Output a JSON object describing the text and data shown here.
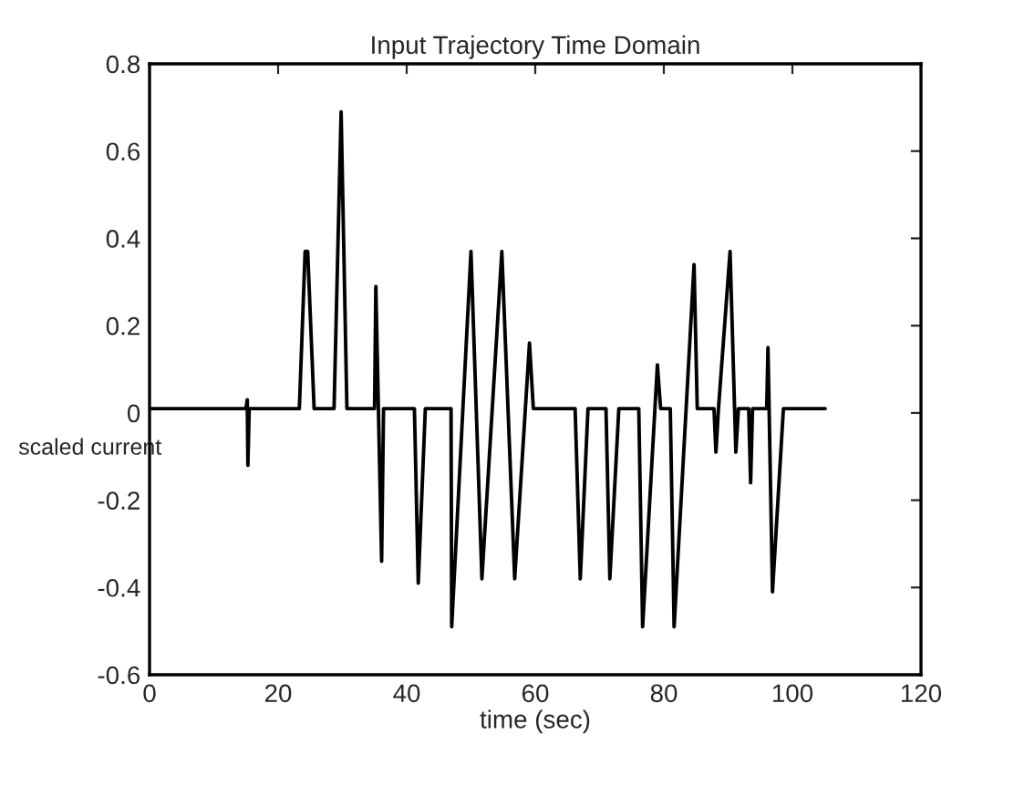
{
  "chart_data": {
    "type": "line",
    "title": "Input Trajectory Time Domain",
    "xlabel": "time (sec)",
    "ylabel": "scaled current",
    "xlim": [
      0,
      120
    ],
    "xticks": [
      0,
      20,
      40,
      60,
      80,
      100,
      120
    ],
    "ylim": [
      -0.6,
      0.8
    ],
    "yticks": [
      -0.6,
      -0.4,
      -0.2,
      0,
      0.2,
      0.4,
      0.6,
      0.8
    ],
    "grid": false,
    "series": [
      {
        "color": "#000000",
        "x": [
          0,
          15.0,
          15.2,
          15.3,
          15.5,
          23.3,
          24.2,
          24.6,
          25.6,
          28.7,
          29.8,
          30.7,
          35.0,
          35.2,
          35.6,
          36.1,
          36.4,
          41.2,
          41.8,
          42.9,
          46.9,
          47.0,
          50.0,
          51.7,
          54.8,
          56.8,
          59.1,
          59.7,
          66.2,
          67.0,
          68.2,
          71.0,
          71.6,
          73.0,
          76.1,
          76.7,
          79.0,
          79.5,
          81.0,
          81.6,
          84.7,
          85.2,
          87.8,
          88.1,
          88.5,
          90.3,
          91.2,
          91.6,
          93.2,
          93.5,
          93.8,
          96.0,
          96.2,
          96.9,
          98.6,
          105.1
        ],
        "values": [
          0.01,
          0.01,
          0.03,
          -0.12,
          0.01,
          0.01,
          0.37,
          0.37,
          0.01,
          0.01,
          0.69,
          0.01,
          0.01,
          0.29,
          0.01,
          -0.34,
          0.01,
          0.01,
          -0.39,
          0.01,
          0.01,
          -0.49,
          0.37,
          -0.38,
          0.37,
          -0.38,
          0.16,
          0.01,
          0.01,
          -0.38,
          0.01,
          0.01,
          -0.38,
          0.01,
          0.01,
          -0.49,
          0.11,
          0.01,
          0.01,
          -0.49,
          0.34,
          0.01,
          0.01,
          -0.09,
          0.01,
          0.37,
          -0.09,
          0.01,
          0.01,
          -0.16,
          0.01,
          0.01,
          0.15,
          -0.41,
          0.01,
          0.01
        ]
      }
    ]
  }
}
